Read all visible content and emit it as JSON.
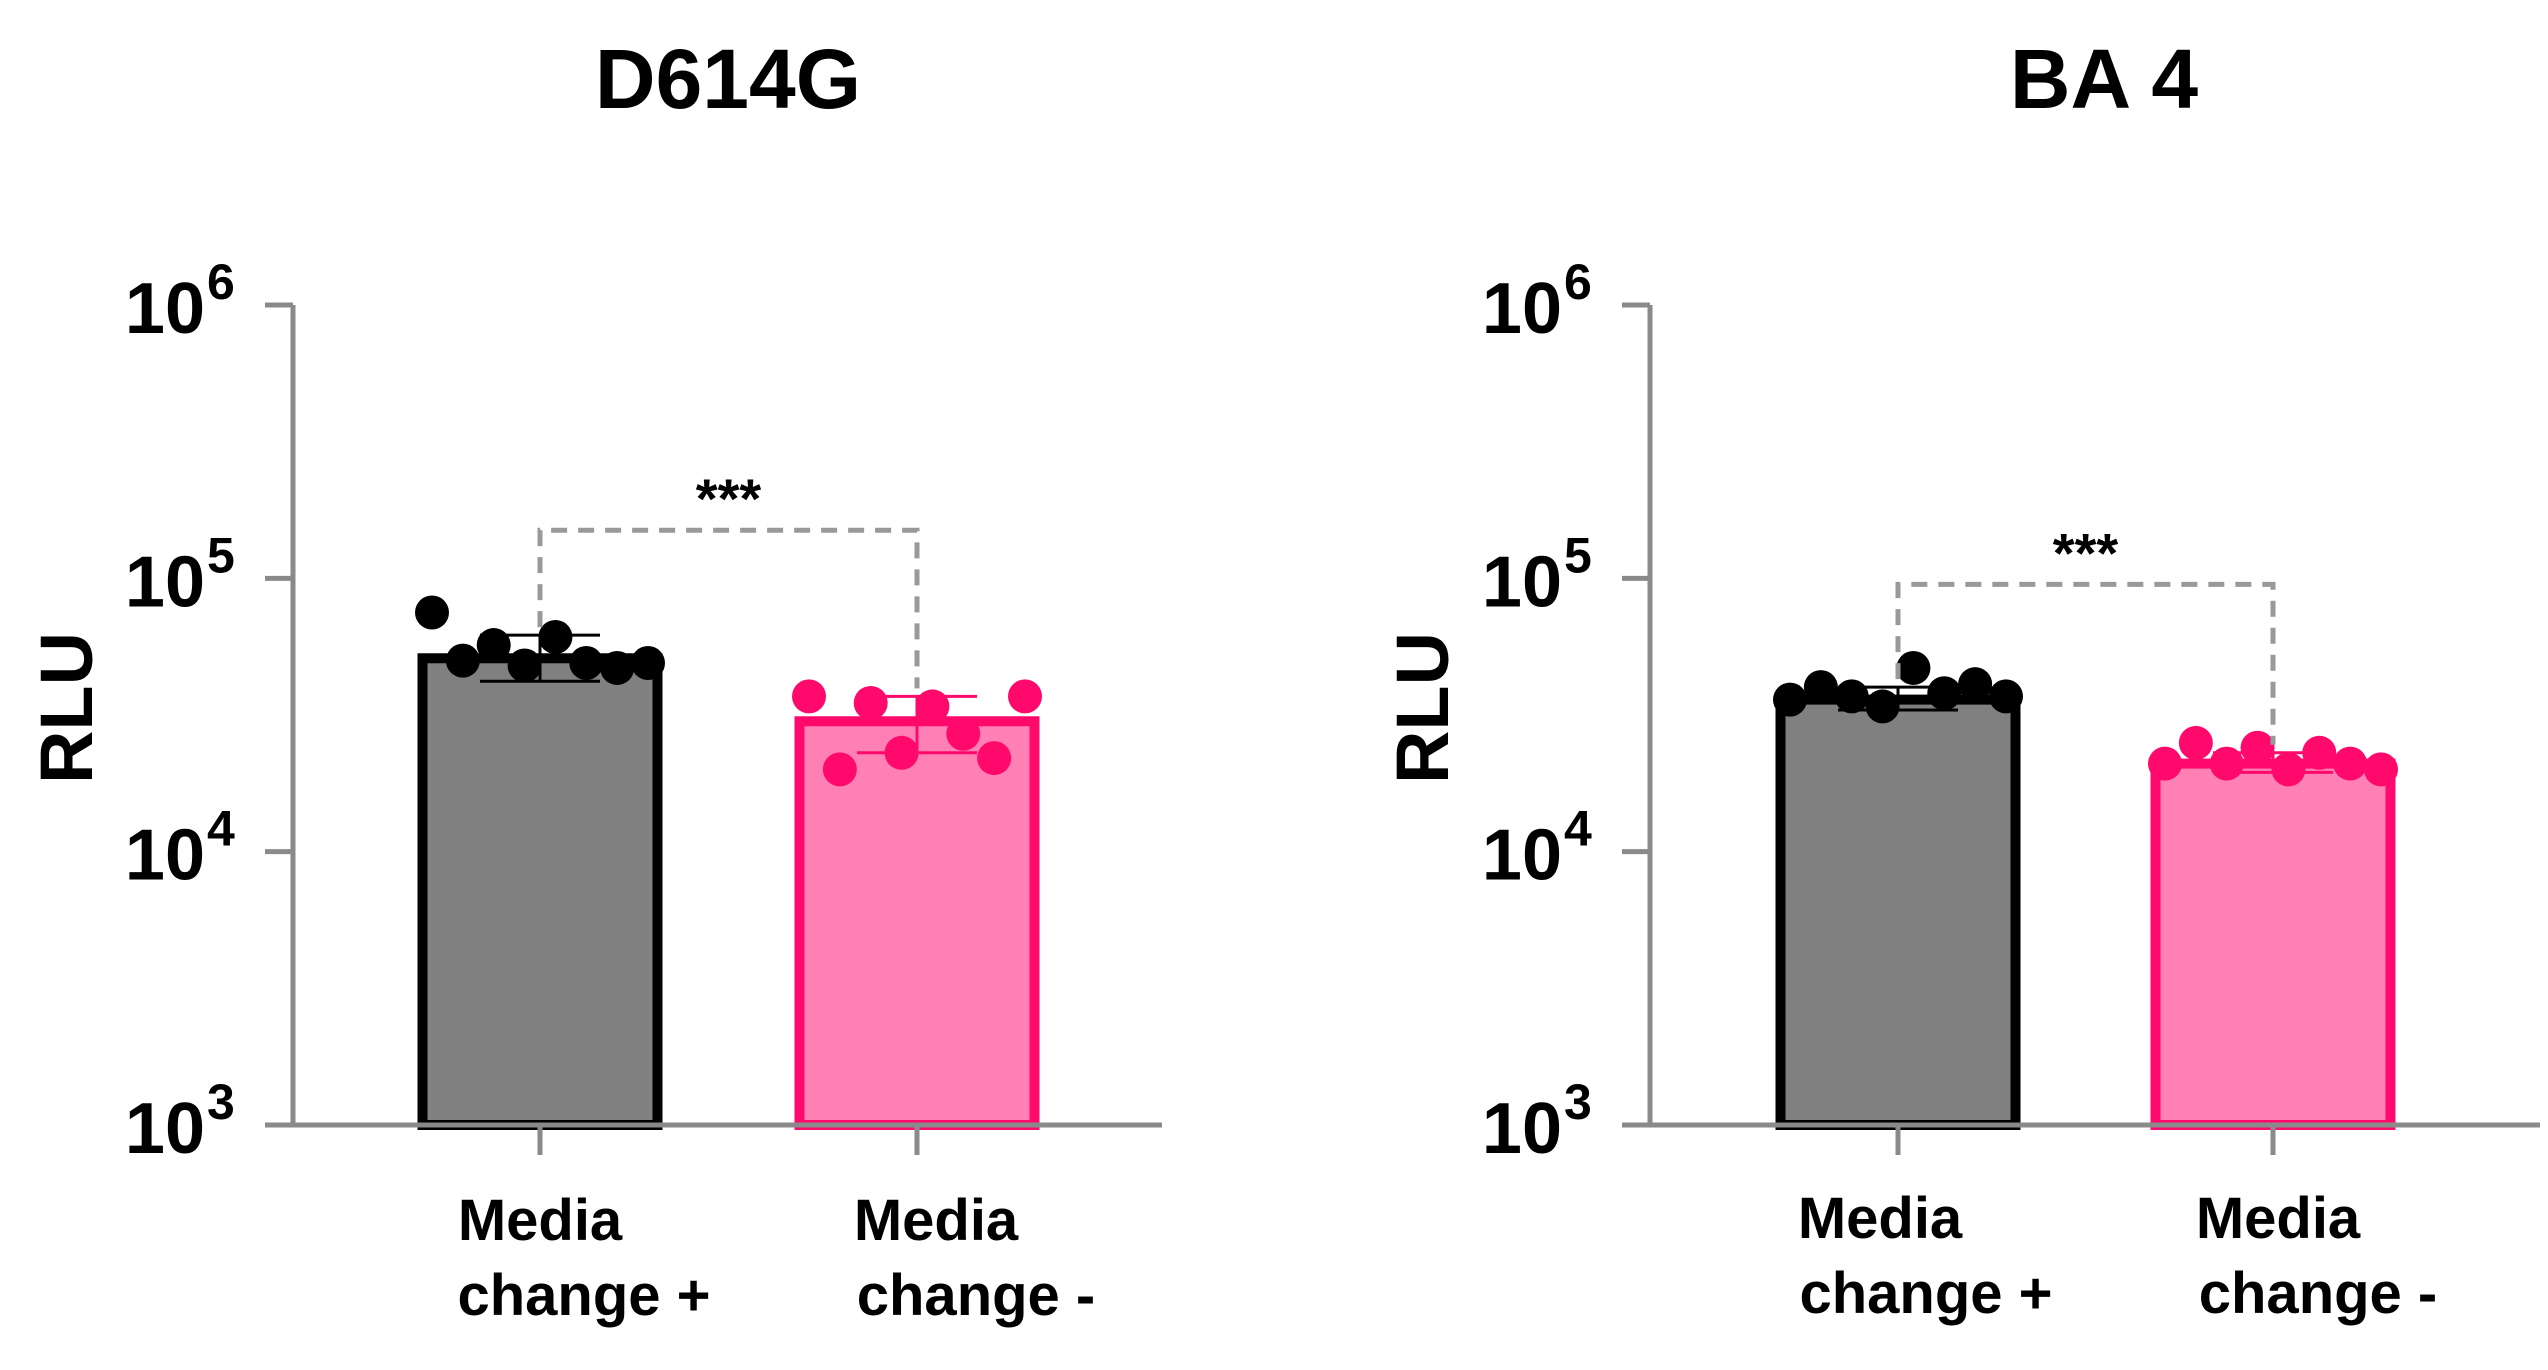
{
  "chart_data": [
    {
      "type": "bar",
      "title": "D614G",
      "ylabel": "RLU",
      "yscale": "log",
      "ylim": [
        1000,
        1000000
      ],
      "yticks": [
        {
          "value": 1000,
          "base": "10",
          "exp": "3"
        },
        {
          "value": 10000,
          "base": "10",
          "exp": "4"
        },
        {
          "value": 100000,
          "base": "10",
          "exp": "5"
        },
        {
          "value": 1000000,
          "base": "10",
          "exp": "6"
        }
      ],
      "categories": [
        {
          "line1": "Media",
          "line2": "change +"
        },
        {
          "line1": "Media",
          "line2": "change -"
        }
      ],
      "bars": [
        {
          "name": "Media change +",
          "mean": 51000,
          "err_low": 42000,
          "err_high": 62000,
          "fill": "#808080",
          "stroke": "#000000",
          "point_color": "#000000",
          "points": [
            75000,
            50000,
            57000,
            48000,
            61000,
            49000,
            47000,
            49000
          ]
        },
        {
          "name": "Media change -",
          "mean": 30000,
          "err_low": 23000,
          "err_high": 37000,
          "fill": "#FF80B5",
          "stroke": "#FF0A6C",
          "point_color": "#FF0A6C",
          "points": [
            37000,
            20000,
            35000,
            23000,
            34000,
            27000,
            22000,
            37000
          ]
        }
      ],
      "significance": {
        "label": "***",
        "bracket_y": 150000
      }
    },
    {
      "type": "bar",
      "title": "BA 4",
      "ylabel": "RLU",
      "yscale": "log",
      "ylim": [
        1000,
        1000000
      ],
      "yticks": [
        {
          "value": 1000,
          "base": "10",
          "exp": "3"
        },
        {
          "value": 10000,
          "base": "10",
          "exp": "4"
        },
        {
          "value": 100000,
          "base": "10",
          "exp": "5"
        },
        {
          "value": 1000000,
          "base": "10",
          "exp": "6"
        }
      ],
      "categories": [
        {
          "line1": "Media",
          "line2": "change +"
        },
        {
          "line1": "Media",
          "line2": "change -"
        }
      ],
      "bars": [
        {
          "name": "Media change +",
          "mean": 36000,
          "err_low": 33000,
          "err_high": 40000,
          "fill": "#808080",
          "stroke": "#000000",
          "point_color": "#000000",
          "points": [
            36000,
            40000,
            37000,
            34000,
            47000,
            38000,
            41000,
            37000
          ]
        },
        {
          "name": "Media change -",
          "mean": 21000,
          "err_low": 19500,
          "err_high": 23000,
          "fill": "#FF80B5",
          "stroke": "#FF0A6C",
          "point_color": "#FF0A6C",
          "points": [
            21000,
            25000,
            21000,
            24000,
            20000,
            23000,
            21000,
            20000
          ]
        }
      ],
      "significance": {
        "label": "***",
        "bracket_y": 95000
      }
    }
  ]
}
